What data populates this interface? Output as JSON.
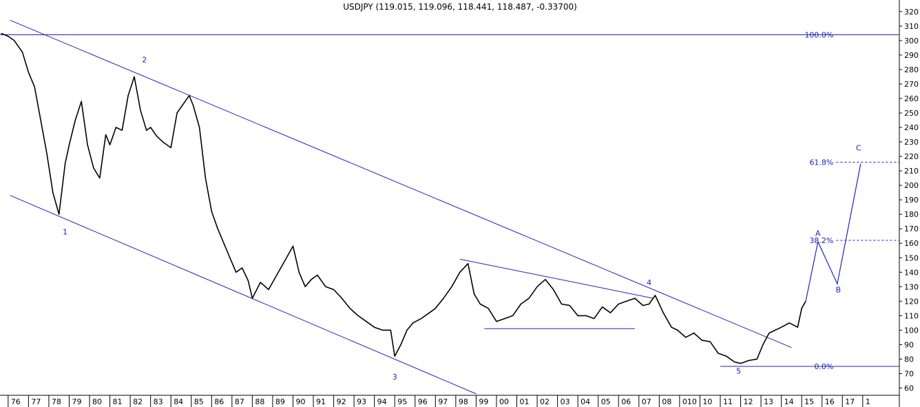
{
  "chart_data": {
    "type": "line",
    "title": "USDJPY (119.015, 119.096, 118.441, 118.487, -0.33700)",
    "y_axis": {
      "position": "right",
      "ylim": [
        55,
        328
      ],
      "ticks": [
        60,
        70,
        80,
        90,
        100,
        110,
        120,
        130,
        140,
        150,
        160,
        170,
        180,
        190,
        200,
        210,
        220,
        230,
        240,
        250,
        260,
        270,
        280,
        290,
        300,
        310,
        320
      ]
    },
    "x_axis": {
      "xlim": [
        1975.6,
        2019.8
      ],
      "ticks": [
        {
          "label": "76",
          "x": 1976
        },
        {
          "label": "77",
          "x": 1977
        },
        {
          "label": "78",
          "x": 1978
        },
        {
          "label": "79",
          "x": 1979
        },
        {
          "label": "80",
          "x": 1980
        },
        {
          "label": "81",
          "x": 1981
        },
        {
          "label": "82",
          "x": 1982
        },
        {
          "label": "83",
          "x": 1983
        },
        {
          "label": "84",
          "x": 1984
        },
        {
          "label": "85",
          "x": 1985
        },
        {
          "label": "86",
          "x": 1986
        },
        {
          "label": "87",
          "x": 1987
        },
        {
          "label": "88",
          "x": 1988
        },
        {
          "label": "89",
          "x": 1989
        },
        {
          "label": "90",
          "x": 1990
        },
        {
          "label": "91",
          "x": 1991
        },
        {
          "label": "92",
          "x": 1992
        },
        {
          "label": "93",
          "x": 1993
        },
        {
          "label": "94",
          "x": 1994
        },
        {
          "label": "95",
          "x": 1995
        },
        {
          "label": "96",
          "x": 1996
        },
        {
          "label": "97",
          "x": 1997
        },
        {
          "label": "98",
          "x": 1998
        },
        {
          "label": "99",
          "x": 1999
        },
        {
          "label": "00",
          "x": 2000
        },
        {
          "label": "01",
          "x": 2001
        },
        {
          "label": "02",
          "x": 2002
        },
        {
          "label": "03",
          "x": 2003
        },
        {
          "label": "04",
          "x": 2004
        },
        {
          "label": "05",
          "x": 2005
        },
        {
          "label": "06",
          "x": 2006
        },
        {
          "label": "07",
          "x": 2007
        },
        {
          "label": "08",
          "x": 2008
        },
        {
          "label": "010",
          "x": 2009
        },
        {
          "label": "10",
          "x": 2010
        },
        {
          "label": "11",
          "x": 2011
        },
        {
          "label": "12",
          "x": 2012
        },
        {
          "label": "13",
          "x": 2013
        },
        {
          "label": "14",
          "x": 2014
        },
        {
          "label": "15",
          "x": 2015
        },
        {
          "label": "16",
          "x": 2016
        },
        {
          "label": "17",
          "x": 2017
        },
        {
          "label": "1",
          "x": 2018
        }
      ]
    },
    "series": [
      {
        "x": [
          1975.65,
          1976.0,
          1976.3,
          1976.7,
          1977.0,
          1977.3,
          1977.6,
          1977.9,
          1978.2,
          1978.5,
          1978.8,
          1979.0,
          1979.3,
          1979.6,
          1979.9,
          1980.2,
          1980.5,
          1980.8,
          1981.0,
          1981.3,
          1981.6,
          1981.9,
          1982.2,
          1982.5,
          1982.8,
          1983.0,
          1983.3,
          1983.6,
          1984.0,
          1984.3,
          1984.6,
          1984.9,
          1985.1,
          1985.4,
          1985.7,
          1986.0,
          1986.3,
          1986.6,
          1986.9,
          1987.2,
          1987.5,
          1987.8,
          1988.0,
          1988.4,
          1988.8,
          1989.2,
          1989.6,
          1990.0,
          1990.3,
          1990.6,
          1990.9,
          1991.2,
          1991.6,
          1992.0,
          1992.4,
          1992.8,
          1993.2,
          1993.6,
          1994.0,
          1994.4,
          1994.8,
          1995.0,
          1995.3,
          1995.6,
          1995.9,
          1996.3,
          1996.7,
          1997.0,
          1997.4,
          1997.8,
          1998.2,
          1998.6,
          1998.9,
          1999.2,
          1999.6,
          2000.0,
          2000.4,
          2000.8,
          2001.2,
          2001.6,
          2002.0,
          2002.4,
          2002.8,
          2003.2,
          2003.6,
          2004.0,
          2004.4,
          2004.8,
          2005.2,
          2005.6,
          2006.0,
          2006.4,
          2006.8,
          2007.2,
          2007.5,
          2007.8,
          2008.2,
          2008.6,
          2008.9,
          2009.3,
          2009.7,
          2010.1,
          2010.5,
          2010.9,
          2011.3,
          2011.7,
          2012.0,
          2012.4,
          2012.8,
          2013.1,
          2013.4,
          2013.7,
          2014.0,
          2014.4,
          2014.8,
          2015.0,
          2015.2
        ],
        "values": [
          305,
          303,
          300,
          292,
          278,
          268,
          245,
          222,
          195,
          180,
          215,
          228,
          245,
          258,
          228,
          212,
          205,
          235,
          228,
          240,
          238,
          262,
          275,
          252,
          238,
          240,
          234,
          230,
          226,
          250,
          256,
          262,
          255,
          240,
          205,
          182,
          170,
          160,
          150,
          140,
          143,
          134,
          122,
          133,
          128,
          138,
          148,
          158,
          140,
          130,
          135,
          138,
          130,
          128,
          122,
          115,
          110,
          106,
          102,
          100,
          100,
          82,
          90,
          100,
          105,
          108,
          112,
          115,
          122,
          130,
          140,
          146,
          125,
          118,
          115,
          106,
          108,
          110,
          118,
          122,
          130,
          135,
          128,
          118,
          117,
          110,
          110,
          108,
          116,
          112,
          118,
          120,
          122,
          117,
          118,
          124,
          112,
          102,
          100,
          95,
          98,
          93,
          92,
          84,
          82,
          78,
          77,
          79,
          80,
          90,
          98,
          100,
          102,
          105,
          102,
          115,
          120
        ]
      }
    ],
    "horizontal_lines": [
      {
        "label": "100.0%",
        "y": 304,
        "style": "solid"
      },
      {
        "label": "61.8%",
        "y": 216,
        "style": "dashed"
      },
      {
        "label": "38.2%",
        "y": 162,
        "style": "dashed"
      },
      {
        "label": "0.0%",
        "y": 75,
        "style": "solid"
      }
    ],
    "wave_labels": [
      {
        "label": "1",
        "x": 1978.8,
        "y": 166
      },
      {
        "label": "2",
        "x": 1982.7,
        "y": 285
      },
      {
        "label": "3",
        "x": 1995.0,
        "y": 66
      },
      {
        "label": "4",
        "x": 2007.5,
        "y": 131
      },
      {
        "label": "5",
        "x": 2011.9,
        "y": 70
      },
      {
        "label": "A",
        "x": 2015.8,
        "y": 165
      },
      {
        "label": "B",
        "x": 2016.8,
        "y": 126
      },
      {
        "label": "C",
        "x": 2017.8,
        "y": 224
      }
    ],
    "colors": {
      "price": "#000000",
      "annotation": "#2020c0",
      "axis": "#000000"
    }
  }
}
